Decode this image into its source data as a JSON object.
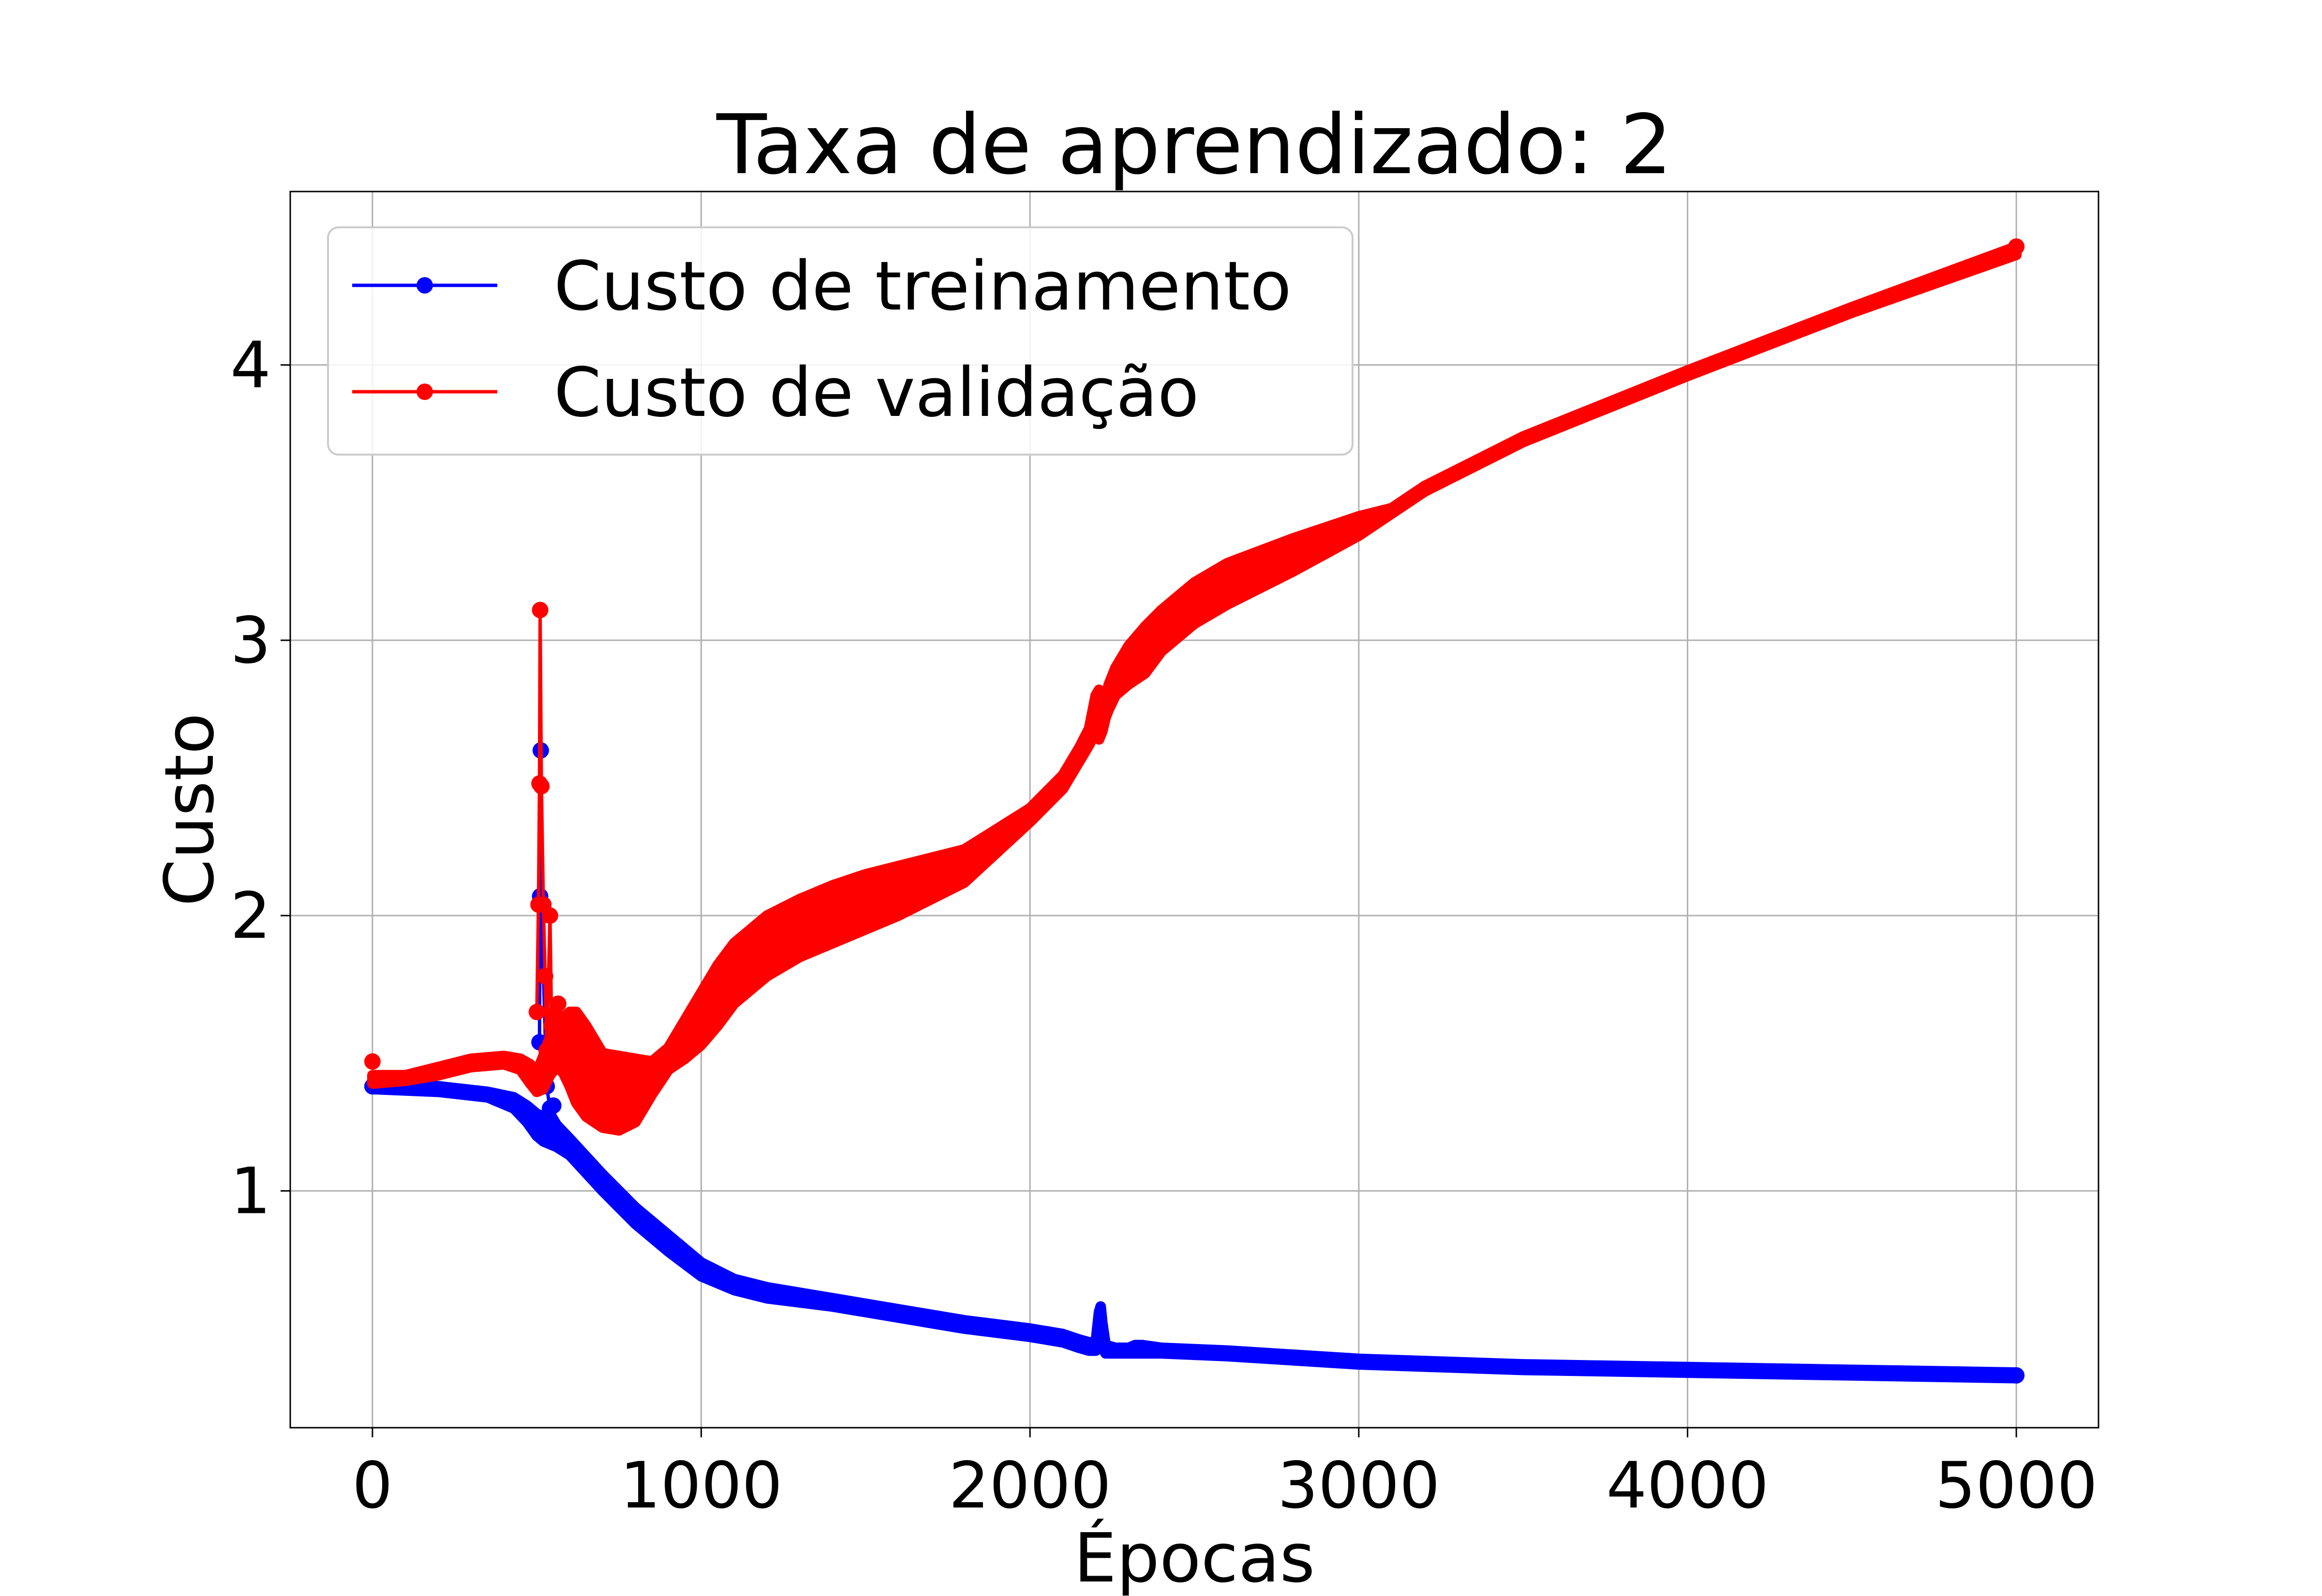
{
  "chart_data": {
    "type": "line",
    "title": "Taxa de aprendizado: 2",
    "xlabel": "Épocas",
    "ylabel": "Custo",
    "xlim": [
      -250,
      5250
    ],
    "ylim": [
      0.14,
      4.63
    ],
    "xticks": [
      0,
      1000,
      2000,
      3000,
      4000,
      5000
    ],
    "yticks": [
      1,
      2,
      3,
      4
    ],
    "grid": true,
    "legend_position": "upper-left",
    "series": [
      {
        "name": "Custo de treinamento",
        "color": "#0000ff",
        "marker": "circle",
        "band": {
          "x": [
            0,
            200,
            350,
            430,
            470,
            500,
            520,
            540,
            560,
            600,
            700,
            800,
            900,
            1000,
            1100,
            1200,
            1400,
            1600,
            1800,
            2000,
            2100,
            2150,
            2180,
            2200,
            2210,
            2215,
            2220,
            2230,
            2260,
            2300,
            2320,
            2340,
            2400,
            2600,
            3000,
            3500,
            4000,
            4500,
            5000
          ],
          "low": [
            1.37,
            1.36,
            1.34,
            1.3,
            1.25,
            1.2,
            1.18,
            1.17,
            1.16,
            1.13,
            1.0,
            0.88,
            0.78,
            0.69,
            0.64,
            0.61,
            0.58,
            0.54,
            0.5,
            0.47,
            0.45,
            0.43,
            0.42,
            0.42,
            0.43,
            0.44,
            0.43,
            0.41,
            0.41,
            0.41,
            0.41,
            0.41,
            0.41,
            0.4,
            0.37,
            0.35,
            0.34,
            0.33,
            0.32
          ],
          "high": [
            1.39,
            1.38,
            1.36,
            1.34,
            1.31,
            1.28,
            1.27,
            1.28,
            1.24,
            1.19,
            1.06,
            0.94,
            0.84,
            0.74,
            0.68,
            0.65,
            0.61,
            0.57,
            0.53,
            0.5,
            0.48,
            0.46,
            0.45,
            0.45,
            0.56,
            0.58,
            0.52,
            0.44,
            0.43,
            0.43,
            0.44,
            0.44,
            0.43,
            0.42,
            0.39,
            0.37,
            0.36,
            0.35,
            0.34
          ]
        },
        "points": [
          {
            "x": 0,
            "y": 1.38
          },
          {
            "x": 508,
            "y": 1.54
          },
          {
            "x": 510,
            "y": 2.07
          },
          {
            "x": 512,
            "y": 2.6
          },
          {
            "x": 514,
            "y": 2.04
          },
          {
            "x": 530,
            "y": 1.38
          },
          {
            "x": 540,
            "y": 1.3
          },
          {
            "x": 550,
            "y": 1.31
          },
          {
            "x": 5000,
            "y": 0.33
          }
        ]
      },
      {
        "name": "Custo de validação",
        "color": "#ff0000",
        "marker": "circle",
        "band": {
          "x": [
            0,
            100,
            200,
            300,
            400,
            450,
            480,
            500,
            520,
            540,
            560,
            580,
            600,
            620,
            650,
            700,
            750,
            800,
            850,
            900,
            950,
            1000,
            1050,
            1100,
            1200,
            1300,
            1400,
            1500,
            1600,
            1800,
            2000,
            2100,
            2150,
            2180,
            2200,
            2210,
            2220,
            2230,
            2240,
            2260,
            2300,
            2350,
            2400,
            2500,
            2600,
            2800,
            3000,
            3100,
            3200,
            3500,
            4000,
            4500,
            5000
          ],
          "low": [
            1.39,
            1.4,
            1.42,
            1.45,
            1.46,
            1.44,
            1.39,
            1.36,
            1.37,
            1.42,
            1.45,
            1.43,
            1.38,
            1.32,
            1.27,
            1.23,
            1.22,
            1.25,
            1.35,
            1.44,
            1.48,
            1.53,
            1.6,
            1.68,
            1.78,
            1.85,
            1.9,
            1.95,
            2.0,
            2.12,
            2.34,
            2.46,
            2.56,
            2.62,
            2.67,
            2.64,
            2.67,
            2.72,
            2.75,
            2.8,
            2.84,
            2.88,
            2.96,
            3.06,
            3.13,
            3.25,
            3.38,
            3.46,
            3.54,
            3.72,
            3.96,
            4.19,
            4.4
          ],
          "high": [
            1.42,
            1.42,
            1.45,
            1.48,
            1.49,
            1.48,
            1.46,
            1.43,
            1.49,
            1.56,
            1.6,
            1.63,
            1.65,
            1.65,
            1.6,
            1.5,
            1.49,
            1.48,
            1.47,
            1.52,
            1.62,
            1.72,
            1.82,
            1.9,
            2.0,
            2.06,
            2.11,
            2.15,
            2.18,
            2.24,
            2.39,
            2.51,
            2.61,
            2.68,
            2.8,
            2.82,
            2.78,
            2.8,
            2.84,
            2.9,
            2.98,
            3.05,
            3.11,
            3.21,
            3.28,
            3.37,
            3.45,
            3.48,
            3.56,
            3.74,
            3.98,
            4.21,
            4.43
          ]
        },
        "points": [
          {
            "x": 0,
            "y": 1.47
          },
          {
            "x": 500,
            "y": 1.65
          },
          {
            "x": 505,
            "y": 2.04
          },
          {
            "x": 508,
            "y": 2.48
          },
          {
            "x": 510,
            "y": 3.11
          },
          {
            "x": 514,
            "y": 2.47
          },
          {
            "x": 520,
            "y": 2.04
          },
          {
            "x": 525,
            "y": 1.78
          },
          {
            "x": 530,
            "y": 1.51
          },
          {
            "x": 540,
            "y": 2.0
          },
          {
            "x": 545,
            "y": 1.6
          },
          {
            "x": 555,
            "y": 1.64
          },
          {
            "x": 565,
            "y": 1.68
          },
          {
            "x": 5000,
            "y": 4.43
          }
        ]
      }
    ]
  }
}
